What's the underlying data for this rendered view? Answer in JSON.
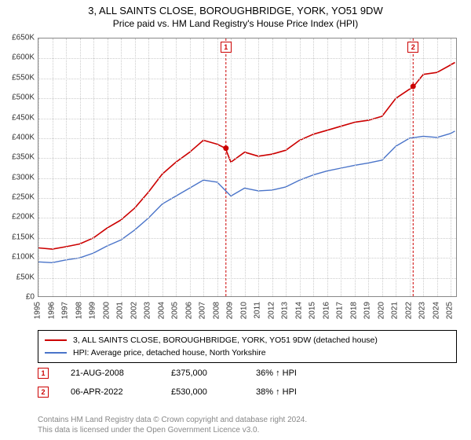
{
  "title": "3, ALL SAINTS CLOSE, BOROUGHBRIDGE, YORK, YO51 9DW",
  "subtitle": "Price paid vs. HM Land Registry's House Price Index (HPI)",
  "chart": {
    "type": "line",
    "background_color": "#ffffff",
    "grid_color": "#cccccc",
    "axis_color": "#888888",
    "y": {
      "label_prefix": "£",
      "min": 0,
      "max": 650000,
      "step": 50000,
      "ticks": [
        "£0",
        "£50K",
        "£100K",
        "£150K",
        "£200K",
        "£250K",
        "£300K",
        "£350K",
        "£400K",
        "£450K",
        "£500K",
        "£550K",
        "£600K",
        "£650K"
      ],
      "label_fontsize": 10
    },
    "x": {
      "min": 1995,
      "max": 2025.5,
      "ticks": [
        1995,
        1996,
        1997,
        1998,
        1999,
        2000,
        2001,
        2002,
        2003,
        2004,
        2005,
        2006,
        2007,
        2008,
        2009,
        2010,
        2011,
        2012,
        2013,
        2014,
        2015,
        2016,
        2017,
        2018,
        2019,
        2020,
        2021,
        2022,
        2023,
        2024,
        2025
      ],
      "label_fontsize": 10
    },
    "series": [
      {
        "name": "property-price",
        "color": "#cc0000",
        "stroke_width": 1.6,
        "points": [
          [
            1995,
            125000
          ],
          [
            1996,
            122000
          ],
          [
            1997,
            128000
          ],
          [
            1998,
            135000
          ],
          [
            1999,
            150000
          ],
          [
            2000,
            175000
          ],
          [
            2001,
            195000
          ],
          [
            2002,
            225000
          ],
          [
            2003,
            265000
          ],
          [
            2004,
            310000
          ],
          [
            2005,
            340000
          ],
          [
            2006,
            365000
          ],
          [
            2007,
            395000
          ],
          [
            2008,
            385000
          ],
          [
            2008.6,
            375000
          ],
          [
            2009,
            340000
          ],
          [
            2010,
            365000
          ],
          [
            2011,
            355000
          ],
          [
            2012,
            360000
          ],
          [
            2013,
            370000
          ],
          [
            2014,
            395000
          ],
          [
            2015,
            410000
          ],
          [
            2016,
            420000
          ],
          [
            2017,
            430000
          ],
          [
            2018,
            440000
          ],
          [
            2019,
            445000
          ],
          [
            2020,
            455000
          ],
          [
            2021,
            500000
          ],
          [
            2022.3,
            530000
          ],
          [
            2023,
            560000
          ],
          [
            2024,
            565000
          ],
          [
            2024.8,
            580000
          ],
          [
            2025.3,
            590000
          ]
        ]
      },
      {
        "name": "hpi",
        "color": "#4a74c9",
        "stroke_width": 1.4,
        "points": [
          [
            1995,
            90000
          ],
          [
            1996,
            88000
          ],
          [
            1997,
            95000
          ],
          [
            1998,
            100000
          ],
          [
            1999,
            112000
          ],
          [
            2000,
            130000
          ],
          [
            2001,
            145000
          ],
          [
            2002,
            170000
          ],
          [
            2003,
            200000
          ],
          [
            2004,
            235000
          ],
          [
            2005,
            255000
          ],
          [
            2006,
            275000
          ],
          [
            2007,
            295000
          ],
          [
            2008,
            290000
          ],
          [
            2009,
            255000
          ],
          [
            2010,
            275000
          ],
          [
            2011,
            268000
          ],
          [
            2012,
            270000
          ],
          [
            2013,
            278000
          ],
          [
            2014,
            295000
          ],
          [
            2015,
            308000
          ],
          [
            2016,
            318000
          ],
          [
            2017,
            325000
          ],
          [
            2018,
            332000
          ],
          [
            2019,
            338000
          ],
          [
            2020,
            345000
          ],
          [
            2021,
            380000
          ],
          [
            2022,
            400000
          ],
          [
            2023,
            405000
          ],
          [
            2024,
            402000
          ],
          [
            2025,
            412000
          ],
          [
            2025.3,
            418000
          ]
        ]
      }
    ],
    "event_markers": [
      {
        "id": "1",
        "x": 2008.64,
        "y": 375000,
        "line_color": "#cc0000"
      },
      {
        "id": "2",
        "x": 2022.26,
        "y": 530000,
        "line_color": "#cc0000"
      }
    ],
    "event_dot_color": "#cc0000",
    "event_dot_radius": 3.5
  },
  "legend": {
    "border_color": "#000000",
    "items": [
      {
        "color": "#cc0000",
        "label": "3, ALL SAINTS CLOSE, BOROUGHBRIDGE, YORK, YO51 9DW (detached house)"
      },
      {
        "color": "#4a74c9",
        "label": "HPI: Average price, detached house, North Yorkshire"
      }
    ]
  },
  "sales": [
    {
      "id": "1",
      "date": "21-AUG-2008",
      "price": "£375,000",
      "delta": "36% ↑ HPI"
    },
    {
      "id": "2",
      "date": "06-APR-2022",
      "price": "£530,000",
      "delta": "38% ↑ HPI"
    }
  ],
  "footer": {
    "line1": "Contains HM Land Registry data © Crown copyright and database right 2024.",
    "line2": "This data is licensed under the Open Government Licence v3.0."
  }
}
